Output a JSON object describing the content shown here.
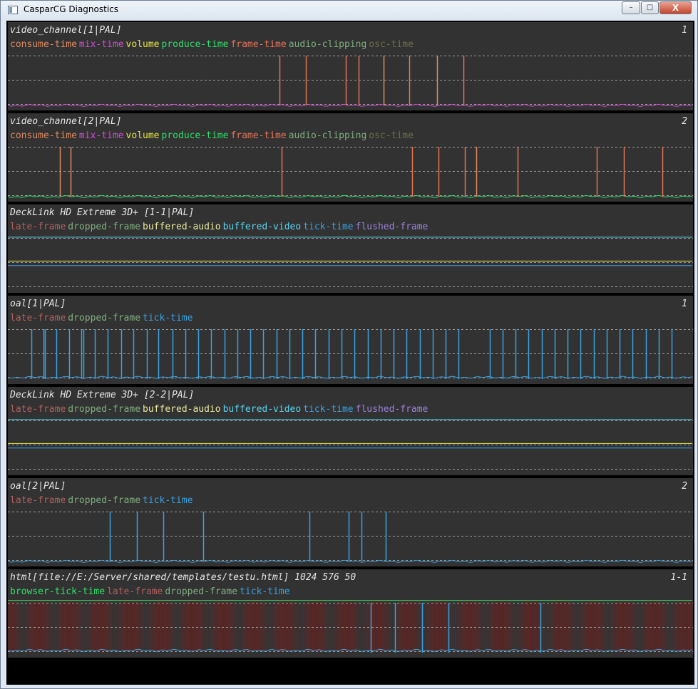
{
  "window": {
    "title": "CasparCG Diagnostics"
  },
  "controls": {
    "minimize": "–",
    "maximize": "□",
    "close": "X"
  },
  "colors": {
    "consume_time": "#e08a60",
    "mix_time": "#d24ad6",
    "volume": "#e6e64a",
    "produce_time": "#2fe06a",
    "frame_time": "#e57356",
    "audio_clipping": "#7fae7f",
    "osc_time": "#6d6d4a",
    "late_frame": "#b06060",
    "dropped_frame": "#7fae7f",
    "buffered_audio": "#e8e8a0",
    "buffered_video": "#5ad4f0",
    "tick_time": "#3aa0e0",
    "flushed_frame": "#9a82d8",
    "browser_tick_time": "#2fe06a"
  },
  "panels": [
    {
      "title": "video_channel[1|PAL]",
      "index": "1",
      "legend": [
        {
          "label": "consume-time",
          "color": "consume_time"
        },
        {
          "label": "mix-time",
          "color": "mix_time"
        },
        {
          "label": "volume",
          "color": "volume"
        },
        {
          "label": "produce-time",
          "color": "produce_time"
        },
        {
          "label": "frame-time",
          "color": "frame_time"
        },
        {
          "label": "audio-clipping",
          "color": "audio_clipping"
        },
        {
          "label": "osc-time",
          "color": "osc_time"
        }
      ]
    },
    {
      "title": "video_channel[2|PAL]",
      "index": "2",
      "legend": [
        {
          "label": "consume-time",
          "color": "consume_time"
        },
        {
          "label": "mix-time",
          "color": "mix_time"
        },
        {
          "label": "volume",
          "color": "volume"
        },
        {
          "label": "produce-time",
          "color": "produce_time"
        },
        {
          "label": "frame-time",
          "color": "frame_time"
        },
        {
          "label": "audio-clipping",
          "color": "audio_clipping"
        },
        {
          "label": "osc-time",
          "color": "osc_time"
        }
      ]
    },
    {
      "title": "DeckLink HD Extreme 3D+ [1-1|PAL]",
      "index": "",
      "legend": [
        {
          "label": "late-frame",
          "color": "late_frame"
        },
        {
          "label": "dropped-frame",
          "color": "dropped_frame"
        },
        {
          "label": "buffered-audio",
          "color": "buffered_audio"
        },
        {
          "label": "buffered-video",
          "color": "buffered_video"
        },
        {
          "label": "tick-time",
          "color": "tick_time"
        },
        {
          "label": "flushed-frame",
          "color": "flushed_frame"
        }
      ]
    },
    {
      "title": "oal[1|PAL]",
      "index": "1",
      "legend": [
        {
          "label": "late-frame",
          "color": "late_frame"
        },
        {
          "label": "dropped-frame",
          "color": "dropped_frame"
        },
        {
          "label": "tick-time",
          "color": "tick_time"
        }
      ]
    },
    {
      "title": "DeckLink HD Extreme 3D+ [2-2|PAL]",
      "index": "",
      "legend": [
        {
          "label": "late-frame",
          "color": "late_frame"
        },
        {
          "label": "dropped-frame",
          "color": "dropped_frame"
        },
        {
          "label": "buffered-audio",
          "color": "buffered_audio"
        },
        {
          "label": "buffered-video",
          "color": "buffered_video"
        },
        {
          "label": "tick-time",
          "color": "tick_time"
        },
        {
          "label": "flushed-frame",
          "color": "flushed_frame"
        }
      ]
    },
    {
      "title": "oal[2|PAL]",
      "index": "2",
      "legend": [
        {
          "label": "late-frame",
          "color": "late_frame"
        },
        {
          "label": "dropped-frame",
          "color": "dropped_frame"
        },
        {
          "label": "tick-time",
          "color": "tick_time"
        }
      ]
    },
    {
      "title": "html[file://E:/Server/shared/templates/testu.html] 1024 576 50",
      "index": "1-1",
      "legend": [
        {
          "label": "browser-tick-time",
          "color": "browser_tick_time"
        },
        {
          "label": "late-frame",
          "color": "late_frame"
        },
        {
          "label": "dropped-frame",
          "color": "dropped_frame"
        },
        {
          "label": "tick-time",
          "color": "tick_time"
        }
      ]
    }
  ],
  "graphs": [
    {
      "spikes": [
        {
          "x": 0.396,
          "color": "frame_time"
        },
        {
          "x": 0.435,
          "color": "frame_time"
        },
        {
          "x": 0.493,
          "color": "frame_time"
        },
        {
          "x": 0.512,
          "color": "frame_time"
        },
        {
          "x": 0.548,
          "color": "consume_time"
        },
        {
          "x": 0.586,
          "color": "frame_time"
        },
        {
          "x": 0.626,
          "color": "consume_time"
        },
        {
          "x": 0.665,
          "color": "frame_time"
        }
      ],
      "levels": [
        {
          "y": 0.96,
          "color": "mix_time",
          "jitter": true
        }
      ]
    },
    {
      "spikes": [
        {
          "x": 0.076,
          "color": "consume_time"
        },
        {
          "x": 0.092,
          "color": "consume_time"
        },
        {
          "x": 0.4,
          "color": "frame_time"
        },
        {
          "x": 0.59,
          "color": "frame_time"
        },
        {
          "x": 0.628,
          "color": "frame_time"
        },
        {
          "x": 0.667,
          "color": "frame_time"
        },
        {
          "x": 0.684,
          "color": "consume_time"
        },
        {
          "x": 0.744,
          "color": "frame_time"
        },
        {
          "x": 0.86,
          "color": "frame_time"
        },
        {
          "x": 0.899,
          "color": "frame_time"
        },
        {
          "x": 0.955,
          "color": "frame_time"
        }
      ],
      "levels": [
        {
          "y": 0.96,
          "color": "produce_time",
          "jitter": true
        }
      ]
    },
    {
      "spikes": [],
      "levels": [
        {
          "y": 0.05,
          "color": "buffered_video",
          "jitter": false
        },
        {
          "y": 0.48,
          "color": "volume",
          "jitter": false
        },
        {
          "y": 0.56,
          "color": "tick_time",
          "jitter": false
        }
      ]
    },
    {
      "spikes": [
        {
          "x": 0.034
        },
        {
          "x": 0.052
        },
        {
          "x": 0.054
        },
        {
          "x": 0.071
        },
        {
          "x": 0.09
        },
        {
          "x": 0.107
        },
        {
          "x": 0.11
        },
        {
          "x": 0.127
        },
        {
          "x": 0.146
        },
        {
          "x": 0.165
        },
        {
          "x": 0.183
        },
        {
          "x": 0.203
        },
        {
          "x": 0.22
        },
        {
          "x": 0.24
        },
        {
          "x": 0.259
        },
        {
          "x": 0.278
        },
        {
          "x": 0.297
        },
        {
          "x": 0.316
        },
        {
          "x": 0.335
        },
        {
          "x": 0.354
        },
        {
          "x": 0.373
        },
        {
          "x": 0.392
        },
        {
          "x": 0.411
        },
        {
          "x": 0.43
        },
        {
          "x": 0.449
        },
        {
          "x": 0.468
        },
        {
          "x": 0.487
        },
        {
          "x": 0.506
        },
        {
          "x": 0.525
        },
        {
          "x": 0.544
        },
        {
          "x": 0.563
        },
        {
          "x": 0.582
        },
        {
          "x": 0.601
        },
        {
          "x": 0.62
        },
        {
          "x": 0.639
        },
        {
          "x": 0.658
        },
        {
          "x": 0.703
        },
        {
          "x": 0.722
        },
        {
          "x": 0.741
        },
        {
          "x": 0.76
        },
        {
          "x": 0.779
        },
        {
          "x": 0.798
        },
        {
          "x": 0.817
        },
        {
          "x": 0.836
        },
        {
          "x": 0.855
        },
        {
          "x": 0.874
        },
        {
          "x": 0.893
        },
        {
          "x": 0.912
        },
        {
          "x": 0.931
        },
        {
          "x": 0.95
        },
        {
          "x": 0.969
        }
      ],
      "spike_color": "tick_time",
      "levels": [
        {
          "y": 0.93,
          "color": "tick_time",
          "jitter": true
        }
      ]
    },
    {
      "spikes": [],
      "levels": [
        {
          "y": 0.05,
          "color": "buffered_video",
          "jitter": false
        },
        {
          "y": 0.48,
          "color": "volume",
          "jitter": false
        },
        {
          "y": 0.56,
          "color": "tick_time",
          "jitter": false
        }
      ]
    },
    {
      "spikes": [
        {
          "x": 0.149
        },
        {
          "x": 0.188
        },
        {
          "x": 0.227
        },
        {
          "x": 0.285
        },
        {
          "x": 0.44
        },
        {
          "x": 0.497
        },
        {
          "x": 0.516
        },
        {
          "x": 0.551
        }
      ],
      "spike_color": "tick_time",
      "levels": [
        {
          "y": 0.96,
          "color": "tick_time",
          "jitter": true
        }
      ]
    },
    {
      "spikes": [
        {
          "x": 0.53
        },
        {
          "x": 0.565
        },
        {
          "x": 0.605
        },
        {
          "x": 0.643
        },
        {
          "x": 0.777
        }
      ],
      "spike_color": "tick_time",
      "red_fill": true,
      "levels": [
        {
          "y": 0.02,
          "color": "browser_tick_time",
          "jitter": false
        },
        {
          "y": 0.92,
          "color": "tick_time",
          "jitter": true
        }
      ]
    }
  ]
}
